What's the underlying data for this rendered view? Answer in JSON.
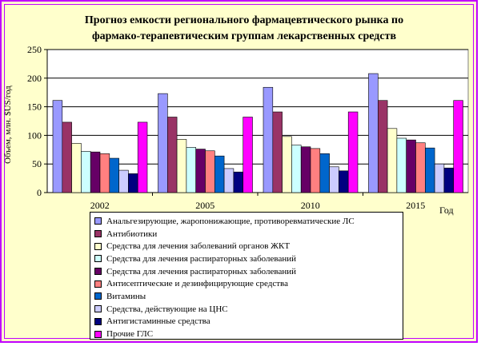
{
  "chart_data": {
    "type": "bar",
    "title": "Прогноз емкости регионального фармацевтического рынка по фармако-терапевтическим группам лекарственных средств",
    "title_lines": [
      "Прогноз емкости регионального фармацевтического рынка по",
      "фармако-терапевтическим группам лекарственных средств"
    ],
    "ylabel": "Объем, млн. $US/год",
    "xlabel": "Год",
    "ylim": [
      0,
      250
    ],
    "yticks": [
      0,
      50,
      100,
      150,
      200,
      250
    ],
    "grid": true,
    "legend_position": "bottom",
    "categories": [
      "2002",
      "2005",
      "2010",
      "2015"
    ],
    "series": [
      {
        "name": "Анальгезирующие, жаропонижающие, противоревматические ЛС",
        "color": "#9999ff",
        "values": [
          161,
          173,
          184,
          208
        ]
      },
      {
        "name": "Антибиотики",
        "color": "#993366",
        "values": [
          123,
          132,
          141,
          161
        ]
      },
      {
        "name": "Средства для лечения заболеваний органов ЖКТ",
        "color": "#ffffcc",
        "values": [
          86,
          93,
          98,
          112
        ]
      },
      {
        "name": "Средства для лечения распираторных заболеваний",
        "color": "#ccffff",
        "values": [
          72,
          79,
          83,
          95
        ]
      },
      {
        "name": "Средства для лечения распираторных заболеваний",
        "color": "#660066",
        "values": [
          71,
          76,
          80,
          92
        ]
      },
      {
        "name": "Антисептические и дезинфицирующие средства",
        "color": "#ff8080",
        "values": [
          68,
          73,
          77,
          87
        ]
      },
      {
        "name": "Витамины",
        "color": "#0066cc",
        "values": [
          60,
          64,
          68,
          78
        ]
      },
      {
        "name": "Средства, действующие на ЦНС",
        "color": "#ccccff",
        "values": [
          39,
          42,
          45,
          50
        ]
      },
      {
        "name": "Антигистаминные средства",
        "color": "#000080",
        "values": [
          33,
          36,
          38,
          43
        ]
      },
      {
        "name": "Прочие ГЛС",
        "color": "#ff00ff",
        "values": [
          123,
          132,
          141,
          161
        ]
      }
    ]
  }
}
